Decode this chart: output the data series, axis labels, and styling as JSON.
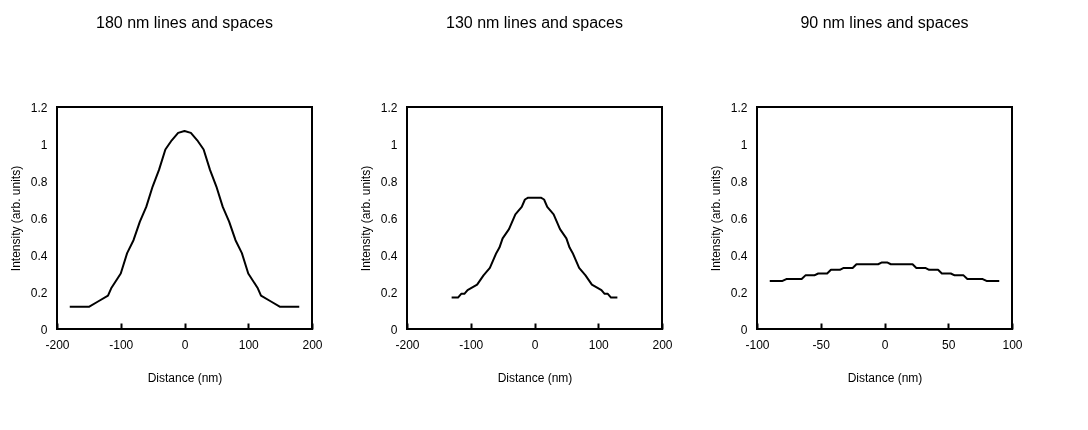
{
  "chart_data": [
    {
      "type": "line",
      "title": "180 nm lines and spaces",
      "xlabel": "Distance (nm)",
      "ylabel": "Intensity (arb. units)",
      "x": [
        -180,
        -150,
        -135,
        -120,
        -115,
        -100,
        -90,
        -80,
        -70,
        -60,
        -50,
        -40,
        -30,
        -20,
        -10,
        0,
        10,
        20,
        30,
        40,
        50,
        60,
        70,
        80,
        90,
        100,
        115,
        120,
        135,
        150,
        180
      ],
      "series": [
        {
          "color": "#000000",
          "values": [
            0.12,
            0.12,
            0.15,
            0.18,
            0.22,
            0.3,
            0.41,
            0.48,
            0.58,
            0.66,
            0.77,
            0.86,
            0.97,
            1.02,
            1.06,
            1.07,
            1.06,
            1.02,
            0.97,
            0.86,
            0.77,
            0.66,
            0.58,
            0.48,
            0.41,
            0.3,
            0.22,
            0.18,
            0.15,
            0.12,
            0.12
          ]
        }
      ],
      "xlim": [
        -200,
        200
      ],
      "xticks": [
        -200,
        -100,
        0,
        100,
        200
      ],
      "ylim": [
        0,
        1.2
      ],
      "yticks": [
        0,
        0.2,
        0.4,
        0.6,
        0.8,
        1,
        1.2
      ]
    },
    {
      "type": "line",
      "title": "130 nm lines and spaces",
      "xlabel": "Distance (nm)",
      "ylabel": "Intensity (arb. units)",
      "x": [
        -130,
        -120,
        -115,
        -110,
        -105,
        -90,
        -80,
        -70,
        -60,
        -55,
        -50,
        -40,
        -30,
        -20,
        -15,
        -10,
        0,
        10,
        15,
        20,
        30,
        40,
        50,
        55,
        60,
        70,
        80,
        90,
        105,
        110,
        115,
        120,
        130
      ],
      "series": [
        {
          "color": "#000000",
          "values": [
            0.17,
            0.17,
            0.19,
            0.19,
            0.21,
            0.24,
            0.29,
            0.33,
            0.41,
            0.44,
            0.49,
            0.54,
            0.62,
            0.66,
            0.7,
            0.71,
            0.71,
            0.71,
            0.7,
            0.66,
            0.62,
            0.54,
            0.49,
            0.44,
            0.41,
            0.33,
            0.29,
            0.24,
            0.21,
            0.19,
            0.19,
            0.17,
            0.17
          ]
        }
      ],
      "xlim": [
        -200,
        200
      ],
      "xticks": [
        -200,
        -100,
        0,
        100,
        200
      ],
      "ylim": [
        0,
        1.2
      ],
      "yticks": [
        0,
        0.2,
        0.4,
        0.6,
        0.8,
        1,
        1.2
      ]
    },
    {
      "type": "line",
      "title": "90 nm lines and spaces",
      "xlabel": "Distance (nm)",
      "ylabel": "Intensity (arb. units)",
      "x": [
        -90,
        -80,
        -77,
        -65,
        -62,
        -55,
        -52,
        -45,
        -42,
        -35,
        -32,
        -25,
        -22,
        -5,
        -2,
        2,
        5,
        22,
        25,
        32,
        35,
        42,
        45,
        52,
        55,
        62,
        65,
        77,
        80,
        90
      ],
      "series": [
        {
          "color": "#000000",
          "values": [
            0.26,
            0.26,
            0.27,
            0.27,
            0.29,
            0.29,
            0.3,
            0.3,
            0.32,
            0.32,
            0.33,
            0.33,
            0.35,
            0.35,
            0.36,
            0.36,
            0.35,
            0.35,
            0.33,
            0.33,
            0.32,
            0.32,
            0.3,
            0.3,
            0.29,
            0.29,
            0.27,
            0.27,
            0.26,
            0.26
          ]
        }
      ],
      "xlim": [
        -100,
        100
      ],
      "xticks": [
        -100,
        -50,
        0,
        50,
        100
      ],
      "ylim": [
        0,
        1.2
      ],
      "yticks": [
        0,
        0.2,
        0.4,
        0.6,
        0.8,
        1,
        1.2
      ]
    }
  ]
}
